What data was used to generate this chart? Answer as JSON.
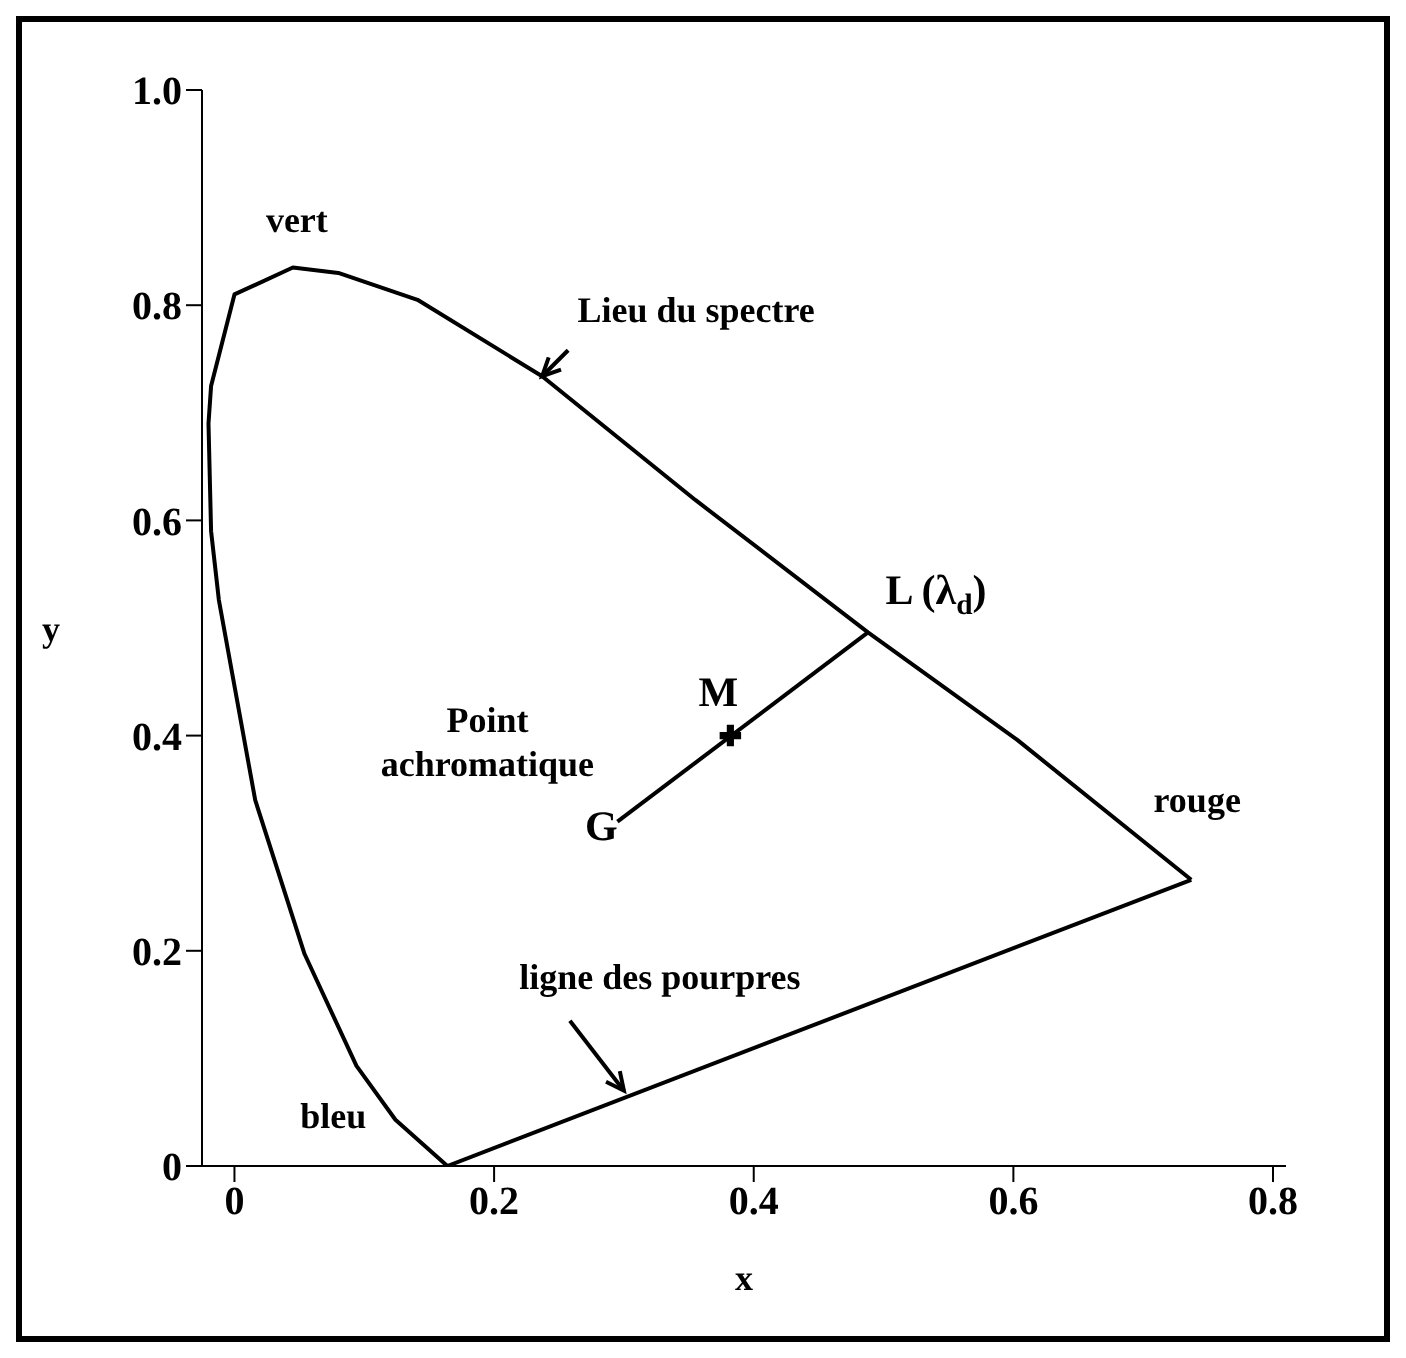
{
  "chart_data": {
    "type": "line",
    "xlabel": "x",
    "ylabel": "y",
    "xlim": [
      -0.025,
      0.81
    ],
    "ylim": [
      0,
      1.0
    ],
    "xticks": [
      0,
      0.2,
      0.4,
      0.6,
      0.8
    ],
    "yticks": [
      0,
      0.2,
      0.4,
      0.6,
      0.8,
      {
        "value": 1,
        "label": "1.0"
      }
    ],
    "series": [
      {
        "color": "#000000",
        "x": [
          0.737,
          0.603,
          0.488,
          0.355,
          0.237,
          0.141,
          0.08,
          0.045,
          0.0,
          -0.018,
          -0.02,
          -0.018,
          -0.012,
          0.016,
          0.054,
          0.094,
          0.124,
          0.164
        ],
        "values": [
          0.266,
          0.396,
          0.496,
          0.619,
          0.734,
          0.805,
          0.83,
          0.835,
          0.81,
          0.725,
          0.69,
          0.59,
          0.526,
          0.34,
          0.197,
          0.093,
          0.043,
          0.0
        ]
      },
      {
        "color": "#000000",
        "x": [
          0.164,
          0.737
        ],
        "values": [
          0.0,
          0.266
        ]
      },
      {
        "color": "#000000",
        "x": [
          0.295,
          0.488
        ],
        "values": [
          0.32,
          0.496
        ]
      },
      {
        "type": "scatter",
        "color": "#000000",
        "marker": "cross",
        "x": [
          0.382
        ],
        "values": [
          0.4
        ]
      }
    ],
    "annotations": [
      {
        "text": "vert",
        "x": 0.045,
        "y": 0.835
      },
      {
        "text": "Lieu du spectre",
        "x": 0.237,
        "y": 0.734
      },
      {
        "text": "L (λ$_{d}$)",
        "x": 0.488,
        "y": 0.496
      },
      {
        "text": "M",
        "x": 0.382,
        "y": 0.4
      },
      {
        "text": "G",
        "x": 0.295,
        "y": 0.32
      },
      {
        "text": "Point achromatique",
        "x": 0.295,
        "y": 0.32
      },
      {
        "text": "rouge",
        "x": 0.737,
        "y": 0.266
      },
      {
        "text": "ligne des pourpres",
        "x": 0.3,
        "y": 0.07
      },
      {
        "text": "bleu",
        "x": 0.164,
        "y": 0.0
      }
    ]
  }
}
